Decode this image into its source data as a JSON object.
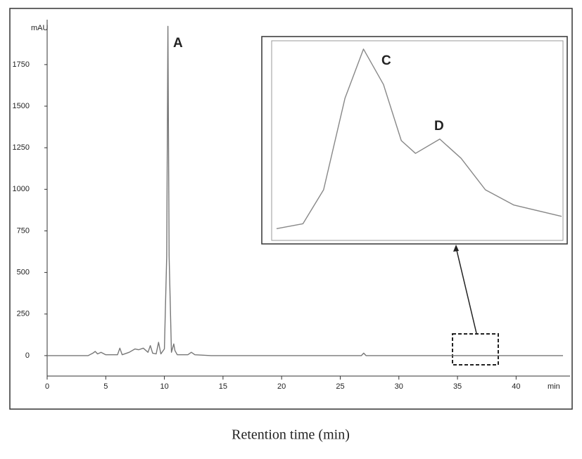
{
  "chart_data": [
    {
      "type": "line",
      "y_label": "mAU",
      "x_unit": "min",
      "x_label": "Retention time (min)",
      "color": "#777777",
      "annotations": [
        "A"
      ],
      "x": [
        0,
        3.5,
        3.9,
        4.1,
        4.3,
        4.6,
        5,
        6,
        6.2,
        6.4,
        7,
        7.5,
        7.8,
        8.2,
        8.6,
        8.8,
        9,
        9.3,
        9.5,
        9.7,
        10.0,
        10.2,
        10.3,
        10.4,
        10.6,
        10.8,
        10.9,
        11.1,
        11.5,
        12,
        12.3,
        12.6,
        14,
        20,
        26.8,
        27,
        27.2,
        30,
        34,
        40,
        44
      ],
      "values": [
        0,
        0,
        15,
        25,
        10,
        20,
        5,
        5,
        45,
        5,
        20,
        40,
        35,
        45,
        20,
        60,
        15,
        10,
        80,
        10,
        40,
        600,
        1980,
        600,
        20,
        70,
        30,
        5,
        5,
        5,
        20,
        5,
        0,
        0,
        0,
        15,
        0,
        0,
        0,
        0,
        0
      ],
      "xlim": [
        0,
        44.6
      ],
      "ylim": [
        -123,
        2020
      ],
      "xticks": [
        0,
        5,
        10,
        15,
        20,
        25,
        30,
        35,
        40
      ],
      "yticks": [
        0,
        250,
        500,
        750,
        1000,
        1250,
        1500,
        1750
      ]
    },
    {
      "type": "line",
      "color": "#888888",
      "annotations": [
        "C",
        "D"
      ],
      "x": [
        34.6,
        34.97,
        35.26,
        35.56,
        35.82,
        36.1,
        36.35,
        36.55,
        36.89,
        37.19,
        37.53,
        37.93,
        38.6
      ],
      "values": [
        -7.9,
        -6.9,
        0,
        18.6,
        28.6,
        21.4,
        10,
        7.4,
        10.3,
        6.4,
        0,
        -3.1,
        -5.4
      ],
      "xlim": [
        34.6,
        38.6
      ],
      "ylim": [
        -10,
        30
      ]
    }
  ]
}
